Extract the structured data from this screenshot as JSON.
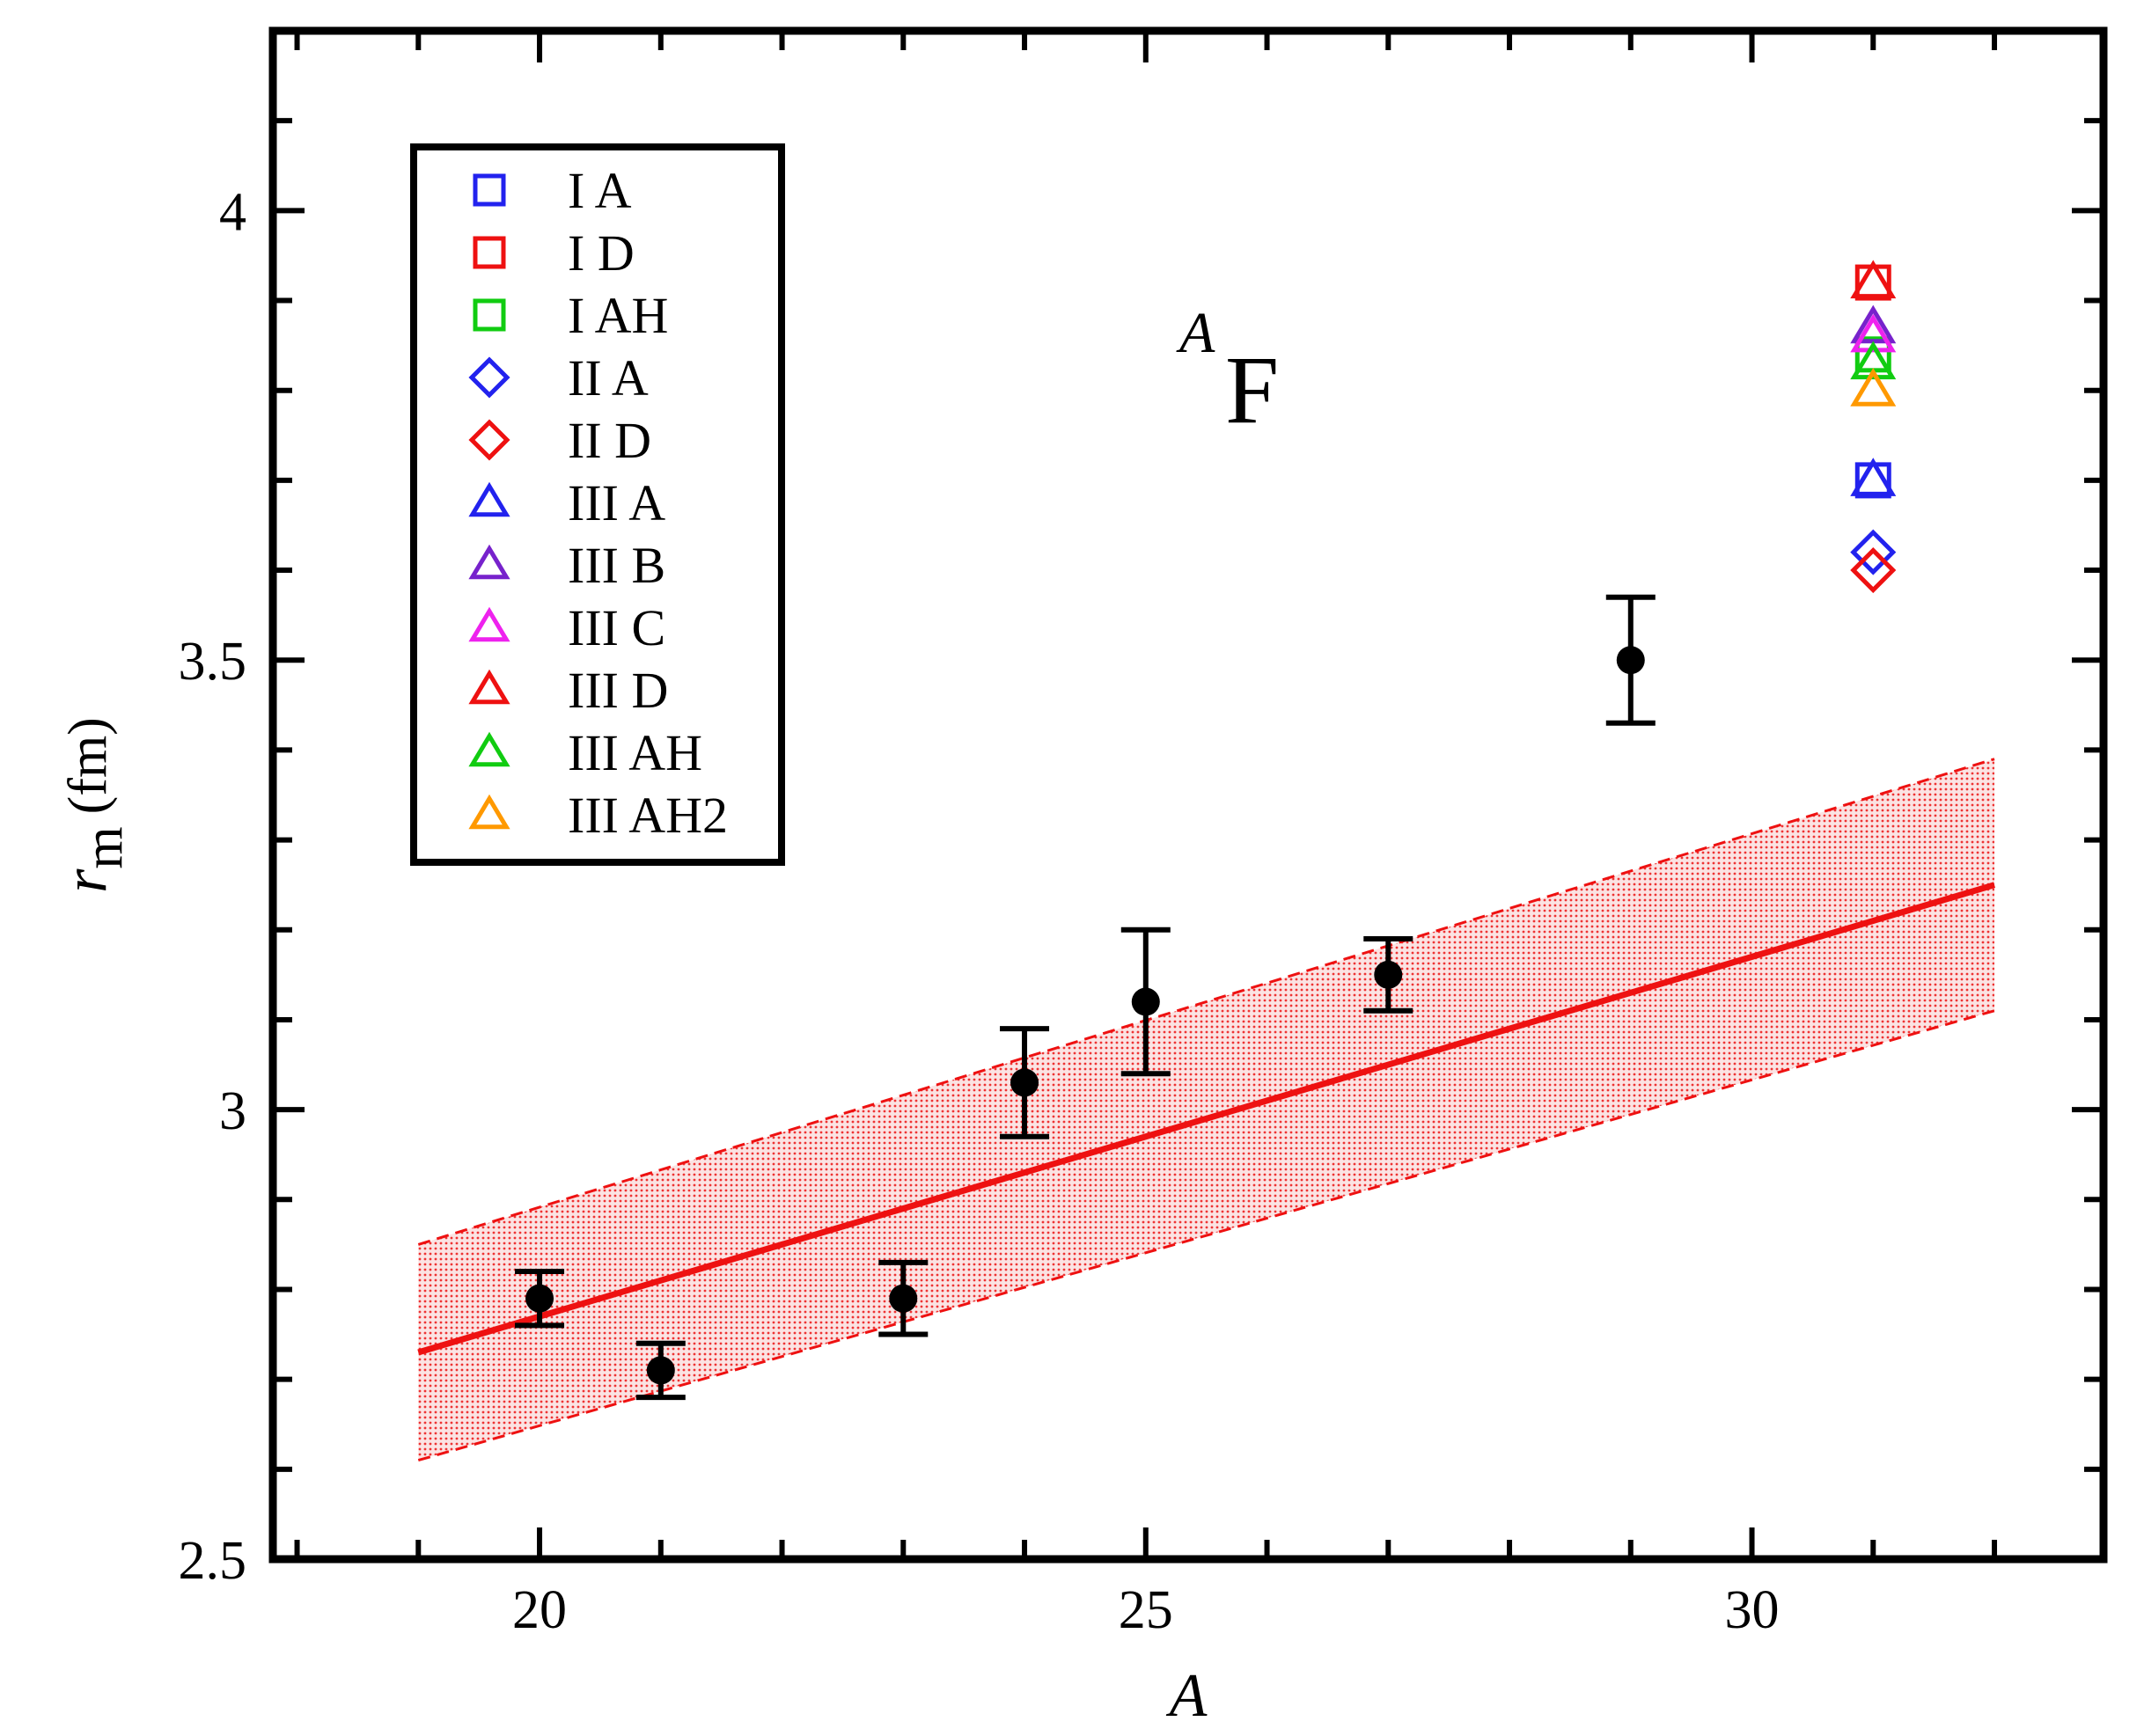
{
  "chart_data": {
    "type": "scatter",
    "title": "",
    "panel_label": {
      "superscript": "A",
      "text": "F"
    },
    "xlabel": "A",
    "ylabel": {
      "symbol": "r",
      "subscript": "m",
      "unit": "(fm)"
    },
    "xlim": [
      17.8,
      32.9
    ],
    "ylim": [
      2.5,
      4.2
    ],
    "xticks": [
      20,
      25,
      30
    ],
    "xtick_labels": [
      "20",
      "25",
      "30"
    ],
    "yticks": [
      2.5,
      3,
      3.5,
      4
    ],
    "ytick_labels": [
      "2.5",
      "3",
      "3.5",
      "4"
    ],
    "grid": false,
    "legend_position": "top-left",
    "experiment": {
      "points": [
        {
          "x": 20,
          "y": 2.79,
          "err": 0.03
        },
        {
          "x": 21,
          "y": 2.71,
          "err": 0.03
        },
        {
          "x": 23,
          "y": 2.79,
          "err": 0.04
        },
        {
          "x": 24,
          "y": 3.03,
          "err": 0.06
        },
        {
          "x": 25,
          "y": 3.12,
          "err": 0.08
        },
        {
          "x": 27,
          "y": 3.15,
          "err": 0.04
        },
        {
          "x": 29,
          "y": 3.5,
          "err": 0.07
        }
      ],
      "color": "#000000"
    },
    "fit": {
      "line": [
        [
          19,
          2.73
        ],
        [
          32,
          3.25
        ]
      ],
      "band_upper": [
        [
          19,
          2.85
        ],
        [
          32,
          3.39
        ]
      ],
      "band_lower": [
        [
          19,
          2.61
        ],
        [
          32,
          3.11
        ]
      ],
      "color": "#ee1111"
    },
    "series": [
      {
        "name": "I A",
        "marker": "square",
        "color": "#2222ee",
        "x": 31,
        "y": 3.7
      },
      {
        "name": "I D",
        "marker": "square",
        "color": "#ee1111",
        "x": 31,
        "y": 3.92
      },
      {
        "name": "I AH",
        "marker": "square",
        "color": "#11cc11",
        "x": 31,
        "y": 3.84
      },
      {
        "name": "II A",
        "marker": "diamond",
        "color": "#2222ee",
        "x": 31,
        "y": 3.62
      },
      {
        "name": "II D",
        "marker": "diamond",
        "color": "#ee1111",
        "x": 31,
        "y": 3.6
      },
      {
        "name": "III A",
        "marker": "triangle",
        "color": "#2222ee",
        "x": 31,
        "y": 3.7
      },
      {
        "name": "III B",
        "marker": "triangle",
        "color": "#7722cc",
        "x": 31,
        "y": 3.87
      },
      {
        "name": "III C",
        "marker": "triangle",
        "color": "#ee22ee",
        "x": 31,
        "y": 3.86
      },
      {
        "name": "III D",
        "marker": "triangle",
        "color": "#ee1111",
        "x": 31,
        "y": 3.92
      },
      {
        "name": "III AH",
        "marker": "triangle",
        "color": "#11cc11",
        "x": 31,
        "y": 3.83
      },
      {
        "name": "III AH2",
        "marker": "triangle",
        "color": "#ff9900",
        "x": 31,
        "y": 3.8
      }
    ]
  }
}
